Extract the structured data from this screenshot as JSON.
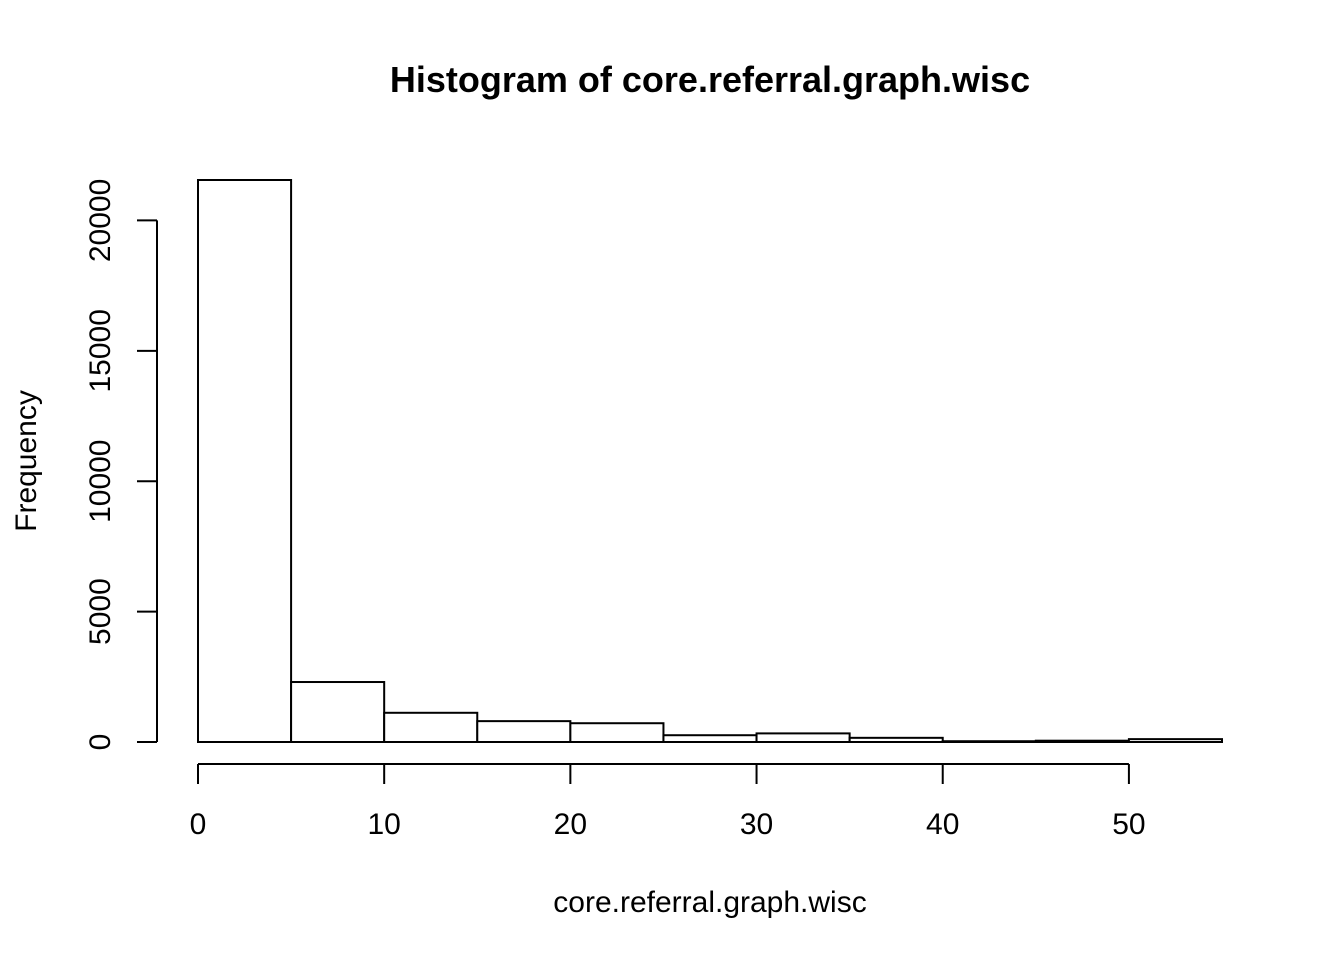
{
  "chart_data": {
    "type": "bar",
    "title": "Histogram of core.referral.graph.wisc",
    "xlabel": "core.referral.graph.wisc",
    "ylabel": "Frequency",
    "bin_edges": [
      0,
      5,
      10,
      15,
      20,
      25,
      30,
      35,
      40,
      45,
      50,
      55
    ],
    "values": [
      21550,
      2300,
      1120,
      800,
      720,
      260,
      330,
      160,
      30,
      50,
      110
    ],
    "xlim": [
      0,
      55
    ],
    "ylim": [
      0,
      21550
    ],
    "x_ticks": [
      0,
      10,
      20,
      30,
      40,
      50
    ],
    "y_ticks": [
      0,
      5000,
      10000,
      15000,
      20000
    ],
    "grid": false,
    "bar_fill": "#ffffff",
    "bar_stroke": "#000000"
  }
}
